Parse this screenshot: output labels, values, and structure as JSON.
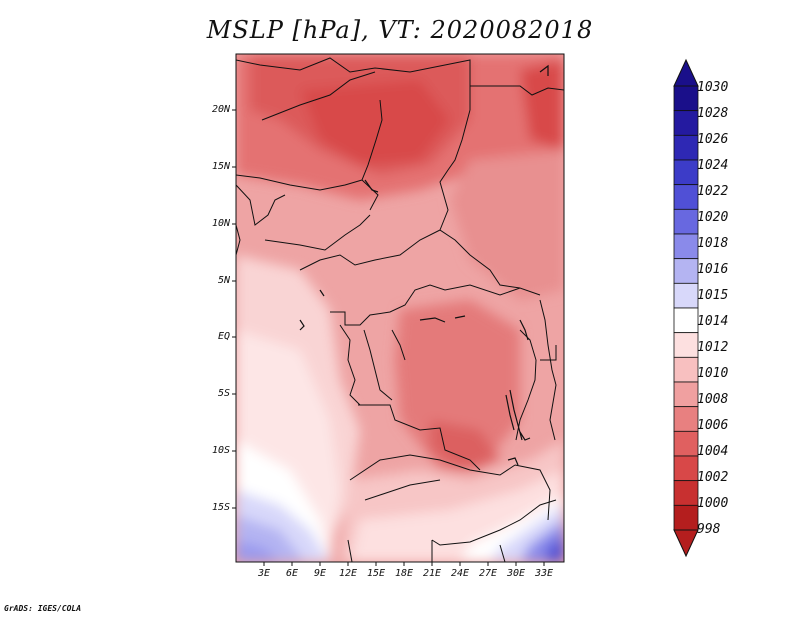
{
  "title": "MSLP [hPa], VT: 2020082018",
  "map": {
    "lat_labels": [
      "20N",
      "15N",
      "10N",
      "5N",
      "EQ",
      "5S",
      "10S",
      "15S"
    ],
    "lon_labels": [
      "3E",
      "6E",
      "9E",
      "12E",
      "15E",
      "18E",
      "21E",
      "24E",
      "27E",
      "30E",
      "33E"
    ],
    "pressure_bands_hPa": [
      998,
      1000,
      1002,
      1004,
      1006,
      1008,
      1010,
      1012,
      1014,
      1015,
      1016,
      1018,
      1020,
      1022,
      1024,
      1026,
      1028,
      1030
    ]
  },
  "colorbar": {
    "labels": [
      "1030",
      "1028",
      "1026",
      "1024",
      "1022",
      "1020",
      "1018",
      "1016",
      "1015",
      "1014",
      "1012",
      "1010",
      "1008",
      "1006",
      "1004",
      "1002",
      "1000",
      "998"
    ],
    "colors": [
      "#1a0f8a",
      "#241aa0",
      "#2e28b4",
      "#3c3cc8",
      "#5050d6",
      "#6868e0",
      "#8a8aea",
      "#b4b4f2",
      "#d8d8fa",
      "#ffffff",
      "#fde0e0",
      "#f8c0c0",
      "#f0a0a0",
      "#e88080",
      "#e06060",
      "#d84848",
      "#c83030",
      "#b41e1e"
    ]
  },
  "credit": "GrADS: IGES/COLA"
}
